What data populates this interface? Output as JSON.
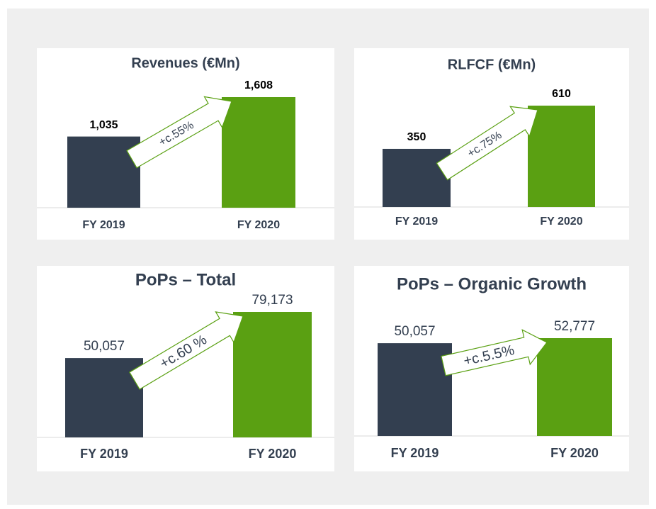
{
  "chart_data": [
    {
      "type": "bar",
      "title": "Revenues (€Mn)",
      "categories": [
        "FY 2019",
        "FY 2020"
      ],
      "values": [
        1035,
        1608
      ],
      "value_labels": [
        "1,035",
        "1,608"
      ],
      "colors": [
        "#333f50",
        "#5aa012"
      ],
      "annotation": "+c.55%"
    },
    {
      "type": "bar",
      "title": "RLFCF (€Mn)",
      "categories": [
        "FY 2019",
        "FY 2020"
      ],
      "values": [
        350,
        610
      ],
      "colors": [
        "#333f50",
        "#5aa012"
      ],
      "annotation": "+c.75%"
    },
    {
      "type": "bar",
      "title": "PoPs – Total",
      "categories": [
        "FY 2019",
        "FY 2020"
      ],
      "values": [
        50057,
        79173
      ],
      "value_labels": [
        "50,057",
        "79,173"
      ],
      "colors": [
        "#333f50",
        "#5aa012"
      ],
      "annotation": "+c.60 %"
    },
    {
      "type": "bar",
      "title": "PoPs – Organic Growth",
      "categories": [
        "FY 2019",
        "FY 2020"
      ],
      "values": [
        50057,
        52777
      ],
      "value_labels": [
        "50,057",
        "52,777"
      ],
      "colors": [
        "#333f50",
        "#5aa012"
      ],
      "annotation": "+c.5.5%"
    }
  ]
}
